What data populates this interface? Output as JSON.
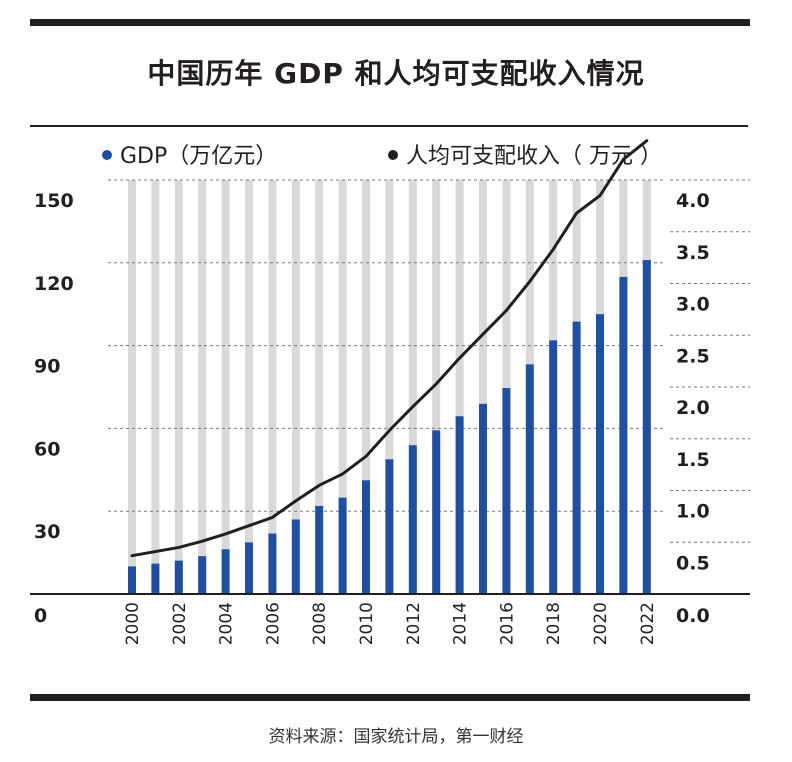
{
  "title": "中国历年 GDP 和人均可支配收入情况",
  "legend": {
    "gdp": "GDP（万亿元）",
    "income": "人均可支配收入（ 万元 ）"
  },
  "source": "资料来源：国家统计局，第一财经",
  "colors": {
    "bar": "#1f4fa3",
    "track": "#d9d9d9",
    "line": "#231f20"
  },
  "chart_data": {
    "type": "bar",
    "categories": [
      "2000",
      "2001",
      "2002",
      "2003",
      "2004",
      "2005",
      "2006",
      "2007",
      "2008",
      "2009",
      "2010",
      "2011",
      "2012",
      "2013",
      "2014",
      "2015",
      "2016",
      "2017",
      "2018",
      "2019",
      "2020",
      "2021",
      "2022"
    ],
    "x_tick_labels": [
      "2000",
      "2002",
      "2004",
      "2006",
      "2008",
      "2010",
      "2012",
      "2014",
      "2016",
      "2018",
      "2020",
      "2022"
    ],
    "series": [
      {
        "name": "GDP（万亿元）",
        "type": "bar",
        "axis": "left",
        "values": [
          10.0,
          11.0,
          12.1,
          13.7,
          16.2,
          18.7,
          21.9,
          27.0,
          31.9,
          34.9,
          41.2,
          48.8,
          53.9,
          59.3,
          64.4,
          68.9,
          74.6,
          83.2,
          91.9,
          98.7,
          101.4,
          114.9,
          121.0
        ]
      },
      {
        "name": "人均可支配收入（ 万元 ）",
        "type": "line",
        "axis": "right",
        "values": [
          0.37,
          0.41,
          0.45,
          0.51,
          0.58,
          0.66,
          0.74,
          0.9,
          1.05,
          1.16,
          1.33,
          1.58,
          1.81,
          2.03,
          2.28,
          2.51,
          2.74,
          3.02,
          3.33,
          3.68,
          3.85,
          4.2,
          4.38
        ]
      }
    ],
    "y_left": {
      "ylim": [
        0,
        150
      ],
      "ticks": [
        0,
        30,
        60,
        90,
        120,
        150
      ]
    },
    "y_right": {
      "ylim": [
        0,
        4.0
      ],
      "ticks": [
        "0.0",
        "0.5",
        "1.0",
        "1.5",
        "2.0",
        "2.5",
        "3.0",
        "3.5",
        "4.0"
      ]
    },
    "grid": true
  }
}
